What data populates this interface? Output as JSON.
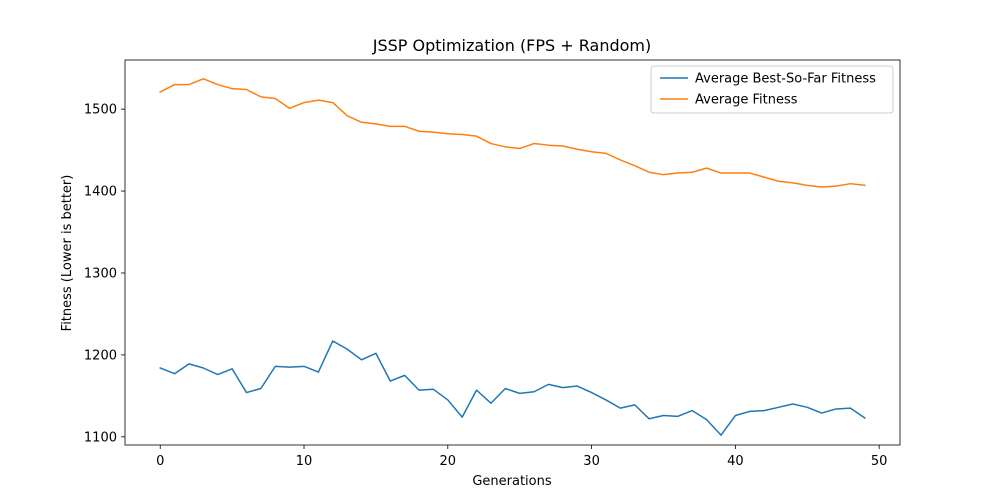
{
  "chart_data": {
    "type": "line",
    "title": "JSSP Optimization (FPS + Random)",
    "xlabel": "Generations",
    "ylabel": "Fitness (Lower is better)",
    "xlim": [
      -2.45,
      51.45
    ],
    "ylim": [
      1090,
      1560
    ],
    "xticks": [
      0,
      10,
      20,
      30,
      40,
      50
    ],
    "yticks": [
      1100,
      1200,
      1300,
      1400,
      1500
    ],
    "grid": false,
    "legend_position": "top-right",
    "x": [
      0,
      1,
      2,
      3,
      4,
      5,
      6,
      7,
      8,
      9,
      10,
      11,
      12,
      13,
      14,
      15,
      16,
      17,
      18,
      19,
      20,
      21,
      22,
      23,
      24,
      25,
      26,
      27,
      28,
      29,
      30,
      31,
      32,
      33,
      34,
      35,
      36,
      37,
      38,
      39,
      40,
      41,
      42,
      43,
      44,
      45,
      46,
      47,
      48,
      49
    ],
    "series": [
      {
        "name": "Average Best-So-Far Fitness",
        "color": "#1f77b4",
        "values": [
          1184,
          1177,
          1189,
          1184,
          1176,
          1183,
          1154,
          1159,
          1186,
          1185,
          1186,
          1179,
          1217,
          1207,
          1194,
          1202,
          1168,
          1175,
          1157,
          1158,
          1145,
          1124,
          1157,
          1141,
          1159,
          1153,
          1155,
          1164,
          1160,
          1162,
          1154,
          1145,
          1135,
          1139,
          1122,
          1126,
          1125,
          1132,
          1121,
          1102,
          1126,
          1131,
          1132,
          1136,
          1140,
          1136,
          1129,
          1134,
          1135,
          1123
        ]
      },
      {
        "name": "Average Fitness",
        "color": "#ff7f0e",
        "values": [
          1521,
          1530,
          1530,
          1537,
          1530,
          1525,
          1524,
          1515,
          1513,
          1501,
          1508,
          1511,
          1508,
          1492,
          1484,
          1482,
          1479,
          1479,
          1473,
          1472,
          1470,
          1469,
          1467,
          1458,
          1454,
          1452,
          1458,
          1456,
          1455,
          1451,
          1448,
          1446,
          1438,
          1431,
          1423,
          1420,
          1422,
          1423,
          1428,
          1422,
          1422,
          1422,
          1417,
          1412,
          1410,
          1407,
          1405,
          1406,
          1409,
          1407
        ]
      }
    ]
  }
}
